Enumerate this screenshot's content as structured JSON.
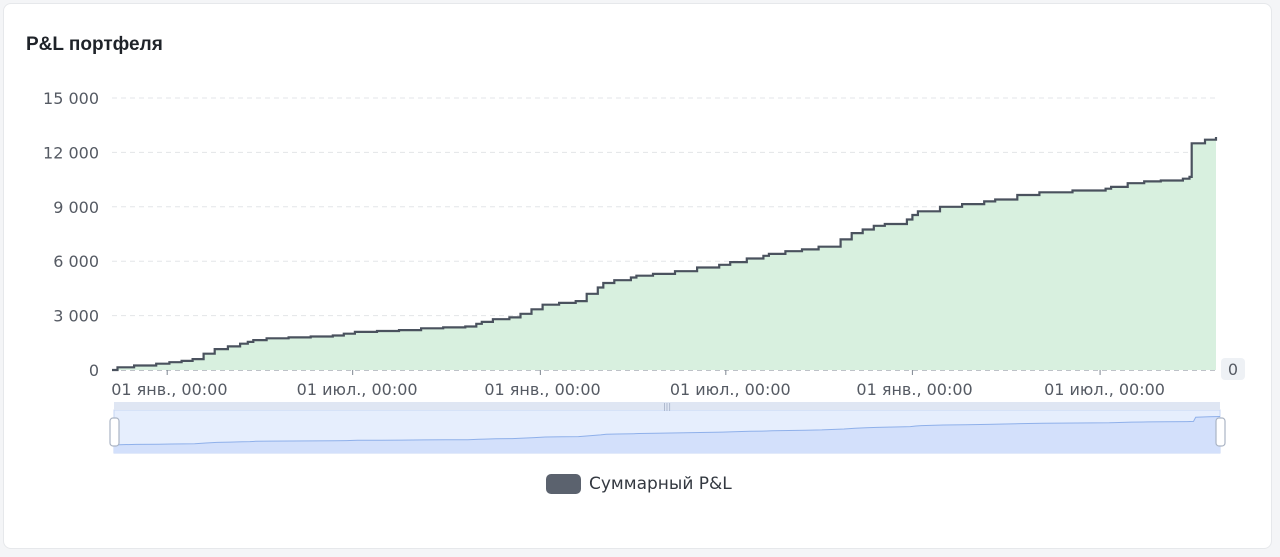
{
  "card": {
    "title": "P&L портфеля"
  },
  "colors": {
    "line": "#4a525e",
    "area": "#d8f0df",
    "grid": "#e3e5e8",
    "slider": "#d3e0fb",
    "slider_line": "#8fb0ea",
    "legend": "#5b626e"
  },
  "chart_data": {
    "type": "area",
    "title": "P&L портфеля",
    "xlabel": "",
    "ylabel": "",
    "ylim": [
      0,
      15000
    ],
    "yticks": [
      "15 000",
      "12 000",
      "9 000",
      "6 000",
      "3 000",
      "0"
    ],
    "yticks_values": [
      15000,
      12000,
      9000,
      6000,
      3000,
      0
    ],
    "xtick_labels": [
      "01 янв., 00:00",
      "01 июл., 00:00",
      "01 янв., 00:00",
      "01 июл., 00:00",
      "01 янв., 00:00",
      "01 июл., 00:00"
    ],
    "xtick_positions": [
      0.05,
      0.218,
      0.388,
      0.556,
      0.725,
      0.895
    ],
    "right_label": "0",
    "grid": true,
    "legend_position": "bottom-center",
    "series": [
      {
        "name": "Суммарный P&L",
        "x": [
          0,
          0.005,
          0.02,
          0.04,
          0.052,
          0.063,
          0.073,
          0.083,
          0.093,
          0.105,
          0.116,
          0.123,
          0.128,
          0.14,
          0.16,
          0.18,
          0.2,
          0.21,
          0.22,
          0.24,
          0.26,
          0.28,
          0.3,
          0.32,
          0.33,
          0.335,
          0.345,
          0.36,
          0.37,
          0.38,
          0.39,
          0.405,
          0.42,
          0.43,
          0.44,
          0.445,
          0.455,
          0.47,
          0.475,
          0.49,
          0.51,
          0.53,
          0.55,
          0.56,
          0.575,
          0.59,
          0.595,
          0.61,
          0.625,
          0.64,
          0.66,
          0.67,
          0.68,
          0.69,
          0.7,
          0.72,
          0.725,
          0.73,
          0.75,
          0.77,
          0.79,
          0.8,
          0.82,
          0.84,
          0.87,
          0.9,
          0.905,
          0.92,
          0.935,
          0.95,
          0.97,
          0.976,
          0.978,
          0.99,
          1.0
        ],
        "values": [
          0,
          150,
          250,
          350,
          430,
          500,
          600,
          900,
          1150,
          1300,
          1450,
          1550,
          1650,
          1750,
          1800,
          1850,
          1900,
          2000,
          2100,
          2150,
          2200,
          2300,
          2350,
          2400,
          2550,
          2650,
          2800,
          2900,
          3100,
          3350,
          3600,
          3700,
          3800,
          4200,
          4550,
          4800,
          4950,
          5100,
          5200,
          5300,
          5450,
          5650,
          5800,
          5950,
          6150,
          6300,
          6400,
          6550,
          6650,
          6800,
          7200,
          7550,
          7750,
          7950,
          8050,
          8300,
          8550,
          8750,
          9000,
          9150,
          9300,
          9400,
          9650,
          9800,
          9900,
          10000,
          10100,
          10300,
          10400,
          10450,
          10550,
          10650,
          12500,
          12700,
          12850
        ]
      }
    ]
  },
  "legend": {
    "label": "Суммарный P&L"
  },
  "slider": {
    "handle_label": "|||"
  }
}
